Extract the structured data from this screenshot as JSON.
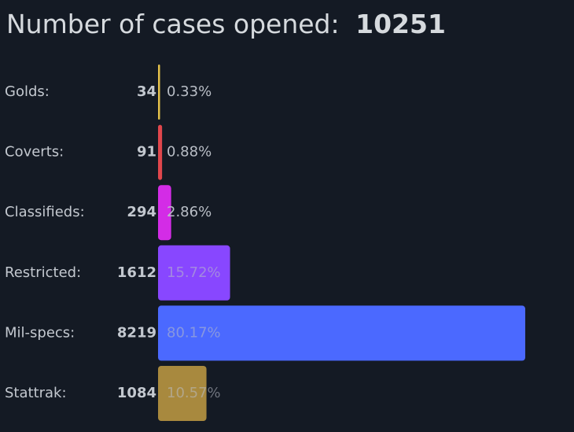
{
  "chart_data": {
    "type": "bar",
    "orientation": "horizontal",
    "title": "Number of cases opened:",
    "total": 10251,
    "categories": [
      "Golds:",
      "Coverts:",
      "Classifieds:",
      "Restricted:",
      "Mil-specs:",
      "Stattrak:"
    ],
    "counts": [
      34,
      91,
      294,
      1612,
      8219,
      1084
    ],
    "values": [
      0.33,
      0.88,
      2.86,
      15.72,
      80.17,
      10.57
    ],
    "value_labels": [
      "0.33%",
      "0.88%",
      "2.86%",
      "15.72%",
      "80.17%",
      "10.57%"
    ],
    "colors": [
      "#e4c14a",
      "#e0474c",
      "#d32ce6",
      "#8847ff",
      "#4b69ff",
      "#a8893e"
    ]
  }
}
